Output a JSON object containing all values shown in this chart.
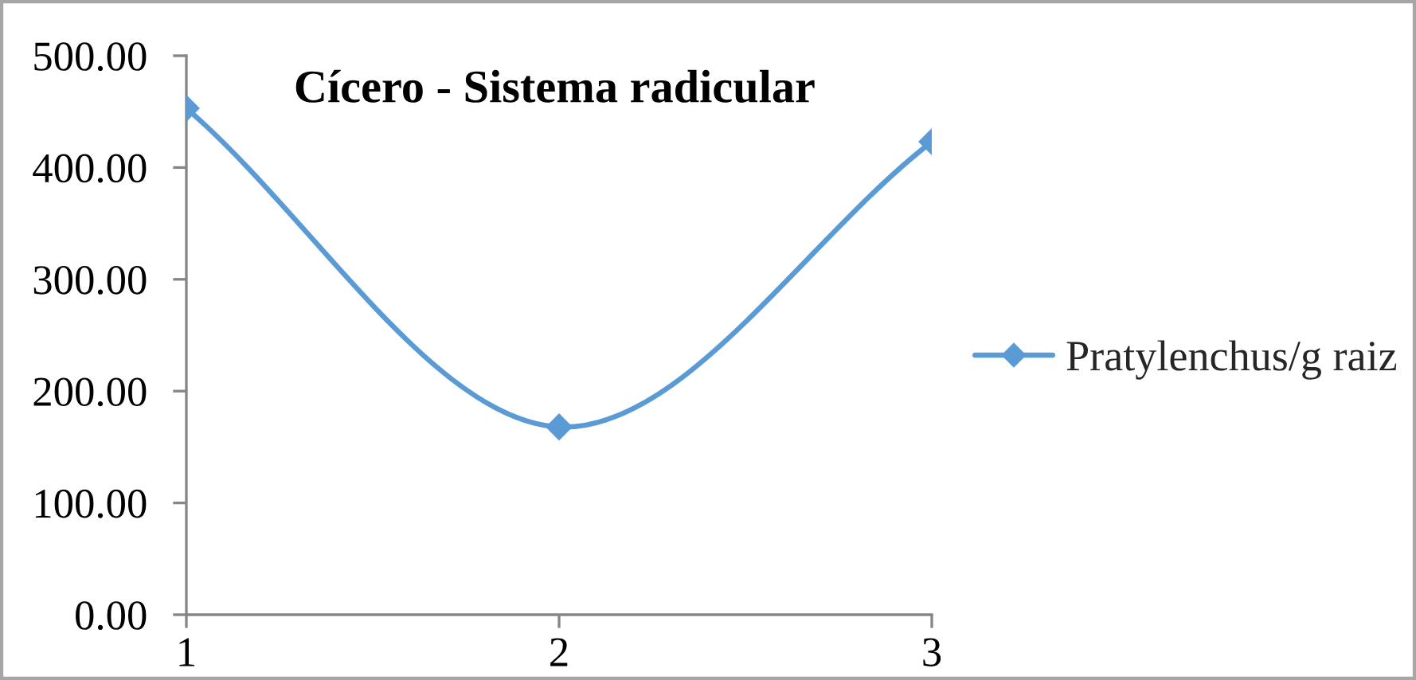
{
  "chart_data": {
    "type": "line",
    "title": "Cícero - Sistema radicular",
    "categories": [
      "1",
      "2",
      "3"
    ],
    "series": [
      {
        "name": "Pratylenchus/g raiz",
        "color": "#5b9bd5",
        "values": [
          453,
          168,
          423
        ]
      }
    ],
    "ylim": [
      0,
      500
    ],
    "yticks": [
      {
        "value": 0,
        "label": "0.00"
      },
      {
        "value": 100,
        "label": "100.00"
      },
      {
        "value": 200,
        "label": "200.00"
      },
      {
        "value": 300,
        "label": "300.00"
      },
      {
        "value": 400,
        "label": "400.00"
      },
      {
        "value": 500,
        "label": "500.00"
      }
    ],
    "legend": "right",
    "marker": "diamond",
    "line_style": "solid"
  }
}
